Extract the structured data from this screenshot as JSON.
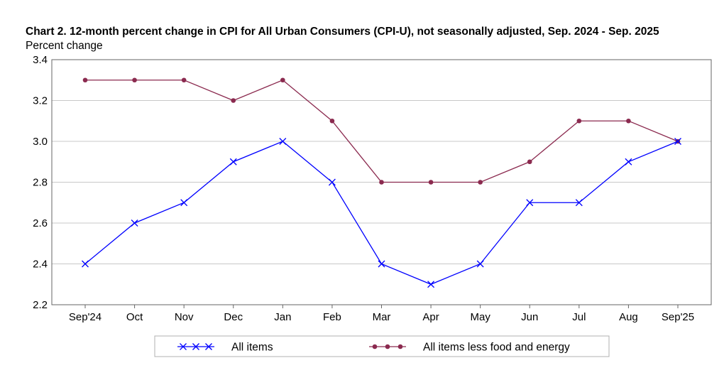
{
  "chart_data": {
    "type": "line",
    "title": "Chart 2. 12-month percent change in CPI for All Urban Consumers (CPI-U), not seasonally adjusted, Sep. 2024 - Sep. 2025",
    "ylabel": "Percent change",
    "xlabel": "",
    "categories": [
      "Sep'24",
      "Oct",
      "Nov",
      "Dec",
      "Jan",
      "Feb",
      "Mar",
      "Apr",
      "May",
      "Jun",
      "Jul",
      "Aug",
      "Sep'25"
    ],
    "ylim": [
      2.2,
      3.4
    ],
    "yticks": [
      "2.2",
      "2.4",
      "2.6",
      "2.8",
      "3.0",
      "3.2",
      "3.4"
    ],
    "grid": true,
    "legend_position": "bottom",
    "series": [
      {
        "name": "All items",
        "color": "#0000ff",
        "marker": "x",
        "values": [
          2.4,
          2.6,
          2.7,
          2.9,
          3.0,
          2.8,
          2.4,
          2.3,
          2.4,
          2.7,
          2.7,
          2.9,
          3.0
        ]
      },
      {
        "name": "All items less food and energy",
        "color": "#8b2a4f",
        "marker": "circle",
        "values": [
          3.3,
          3.3,
          3.3,
          3.2,
          3.3,
          3.1,
          2.8,
          2.8,
          2.8,
          2.9,
          3.1,
          3.1,
          3.0
        ]
      }
    ]
  }
}
